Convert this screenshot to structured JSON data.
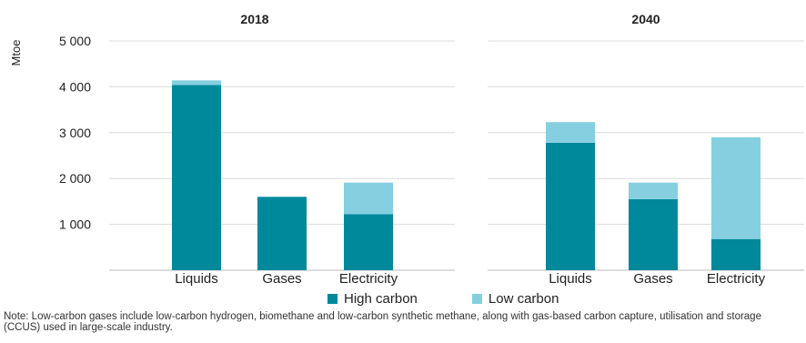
{
  "chart_data": {
    "type": "bar",
    "stacked": true,
    "ylabel": "Mtoe",
    "ylim": [
      0,
      5000
    ],
    "yticks": [
      {
        "value": 1000,
        "label": "1 000"
      },
      {
        "value": 2000,
        "label": "2 000"
      },
      {
        "value": 3000,
        "label": "3 000"
      },
      {
        "value": 4000,
        "label": "4 000"
      },
      {
        "value": 5000,
        "label": "5 000"
      }
    ],
    "grid": true,
    "legend_position": "bottom",
    "colors": {
      "High carbon": "#00889b",
      "Low carbon": "#85cfe0",
      "grid": "#dcdcdc"
    },
    "panels": [
      {
        "title": "2018",
        "categories": [
          "Liquids",
          "Gases",
          "Electricity"
        ],
        "series": [
          {
            "name": "High carbon",
            "values": [
              4040,
              1600,
              1220
            ]
          },
          {
            "name": "Low carbon",
            "values": [
              100,
              0,
              690
            ]
          }
        ]
      },
      {
        "title": "2040",
        "categories": [
          "Liquids",
          "Gases",
          "Electricity"
        ],
        "series": [
          {
            "name": "High carbon",
            "values": [
              2780,
              1550,
              680
            ]
          },
          {
            "name": "Low carbon",
            "values": [
              450,
              360,
              2220
            ]
          }
        ]
      }
    ]
  },
  "legend": {
    "high_label": "High carbon",
    "low_label": "Low carbon"
  },
  "note": "Note: Low-carbon gases include low-carbon hydrogen, biomethane and low-carbon synthetic methane, along with gas-based carbon capture, utilisation and storage (CCUS) used in large-scale industry."
}
